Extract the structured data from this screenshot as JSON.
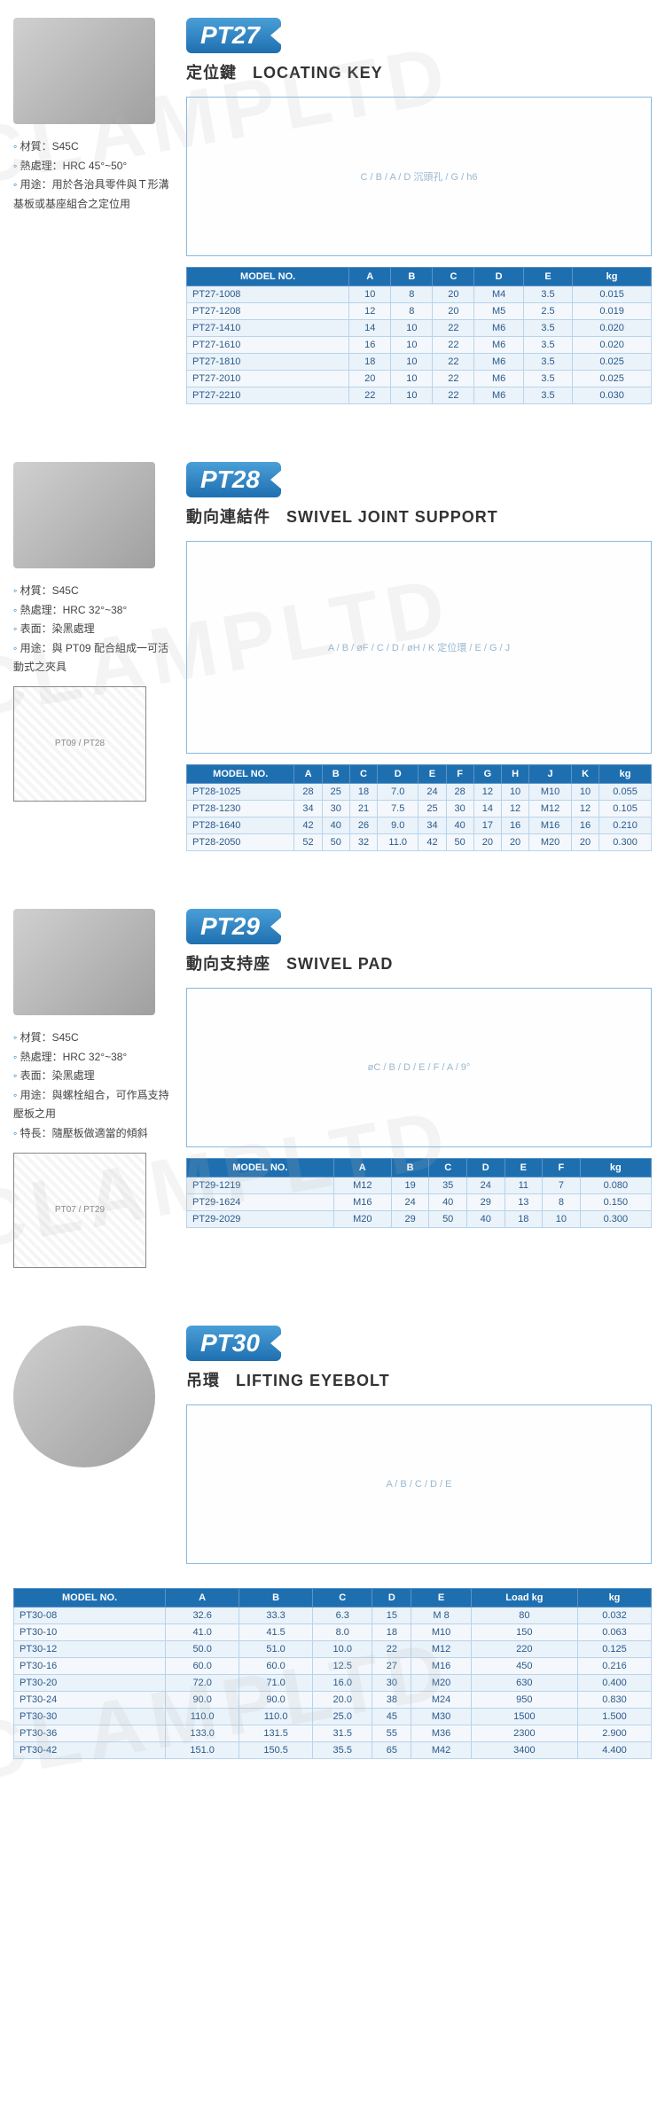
{
  "watermarks": [
    "CLAMPLTD",
    "CLAMPLTD",
    "CLAMPLTD",
    "CLAMPLTD"
  ],
  "pt27": {
    "code": "PT27",
    "title_cn": "定位鍵",
    "title_en": "LOCATING KEY",
    "specs": [
      "材質：S45C",
      "熱處理：HRC 45°~50°",
      "用途：用於各治具零件與Ｔ形溝基板或基座組合之定位用"
    ],
    "diagram_label": "C / B / A / D 沉頭孔 / G / h6",
    "headers": [
      "MODEL NO.",
      "A",
      "B",
      "C",
      "D",
      "E",
      "kg"
    ],
    "rows": [
      [
        "PT27-1008",
        "10",
        "8",
        "20",
        "M4",
        "3.5",
        "0.015"
      ],
      [
        "PT27-1208",
        "12",
        "8",
        "20",
        "M5",
        "2.5",
        "0.019"
      ],
      [
        "PT27-1410",
        "14",
        "10",
        "22",
        "M6",
        "3.5",
        "0.020"
      ],
      [
        "PT27-1610",
        "16",
        "10",
        "22",
        "M6",
        "3.5",
        "0.020"
      ],
      [
        "PT27-1810",
        "18",
        "10",
        "22",
        "M6",
        "3.5",
        "0.025"
      ],
      [
        "PT27-2010",
        "20",
        "10",
        "22",
        "M6",
        "3.5",
        "0.025"
      ],
      [
        "PT27-2210",
        "22",
        "10",
        "22",
        "M6",
        "3.5",
        "0.030"
      ]
    ]
  },
  "pt28": {
    "code": "PT28",
    "title_cn": "動向連結件",
    "title_en": "SWIVEL JOINT SUPPORT",
    "specs": [
      "材質：S45C",
      "熱處理：HRC 32°~38°",
      "表面：染黑處理",
      "用途：與 PT09 配合組成一可活動式之夾具"
    ],
    "mini_label": "PT09 / PT28",
    "diagram_label": "A / B / øF / C / D / øH / K 定位環 / E / G / J",
    "headers": [
      "MODEL NO.",
      "A",
      "B",
      "C",
      "D",
      "E",
      "F",
      "G",
      "H",
      "J",
      "K",
      "kg"
    ],
    "rows": [
      [
        "PT28-1025",
        "28",
        "25",
        "18",
        "7.0",
        "24",
        "28",
        "12",
        "10",
        "M10",
        "10",
        "0.055"
      ],
      [
        "PT28-1230",
        "34",
        "30",
        "21",
        "7.5",
        "25",
        "30",
        "14",
        "12",
        "M12",
        "12",
        "0.105"
      ],
      [
        "PT28-1640",
        "42",
        "40",
        "26",
        "9.0",
        "34",
        "40",
        "17",
        "16",
        "M16",
        "16",
        "0.210"
      ],
      [
        "PT28-2050",
        "52",
        "50",
        "32",
        "11.0",
        "42",
        "50",
        "20",
        "20",
        "M20",
        "20",
        "0.300"
      ]
    ]
  },
  "pt29": {
    "code": "PT29",
    "title_cn": "動向支持座",
    "title_en": "SWIVEL PAD",
    "specs": [
      "材質：S45C",
      "熱處理：HRC 32°~38°",
      "表面：染黑處理",
      "用途：與螺栓組合，可作爲支持壓板之用",
      "特長：隨壓板做適當的傾斜"
    ],
    "mini_label": "PT07 / PT29",
    "diagram_label": "øC / B / D / E / F / A / 9°",
    "headers": [
      "MODEL NO.",
      "A",
      "B",
      "C",
      "D",
      "E",
      "F",
      "kg"
    ],
    "rows": [
      [
        "PT29-1219",
        "M12",
        "19",
        "35",
        "24",
        "11",
        "7",
        "0.080"
      ],
      [
        "PT29-1624",
        "M16",
        "24",
        "40",
        "29",
        "13",
        "8",
        "0.150"
      ],
      [
        "PT29-2029",
        "M20",
        "29",
        "50",
        "40",
        "18",
        "10",
        "0.300"
      ]
    ]
  },
  "pt30": {
    "code": "PT30",
    "title_cn": "吊環",
    "title_en": "LIFTING EYEBOLT",
    "diagram_label": "A / B / C / D / E",
    "headers": [
      "MODEL NO.",
      "A",
      "B",
      "C",
      "D",
      "E",
      "Load kg",
      "kg"
    ],
    "rows": [
      [
        "PT30-08",
        "32.6",
        "33.3",
        "6.3",
        "15",
        "M 8",
        "80",
        "0.032"
      ],
      [
        "PT30-10",
        "41.0",
        "41.5",
        "8.0",
        "18",
        "M10",
        "150",
        "0.063"
      ],
      [
        "PT30-12",
        "50.0",
        "51.0",
        "10.0",
        "22",
        "M12",
        "220",
        "0.125"
      ],
      [
        "PT30-16",
        "60.0",
        "60.0",
        "12.5",
        "27",
        "M16",
        "450",
        "0.216"
      ],
      [
        "PT30-20",
        "72.0",
        "71.0",
        "16.0",
        "30",
        "M20",
        "630",
        "0.400"
      ],
      [
        "PT30-24",
        "90.0",
        "90.0",
        "20.0",
        "38",
        "M24",
        "950",
        "0.830"
      ],
      [
        "PT30-30",
        "110.0",
        "110.0",
        "25.0",
        "45",
        "M30",
        "1500",
        "1.500"
      ],
      [
        "PT30-36",
        "133.0",
        "131.5",
        "31.5",
        "55",
        "M36",
        "2300",
        "2.900"
      ],
      [
        "PT30-42",
        "151.0",
        "150.5",
        "35.5",
        "65",
        "M42",
        "3400",
        "4.400"
      ]
    ]
  }
}
